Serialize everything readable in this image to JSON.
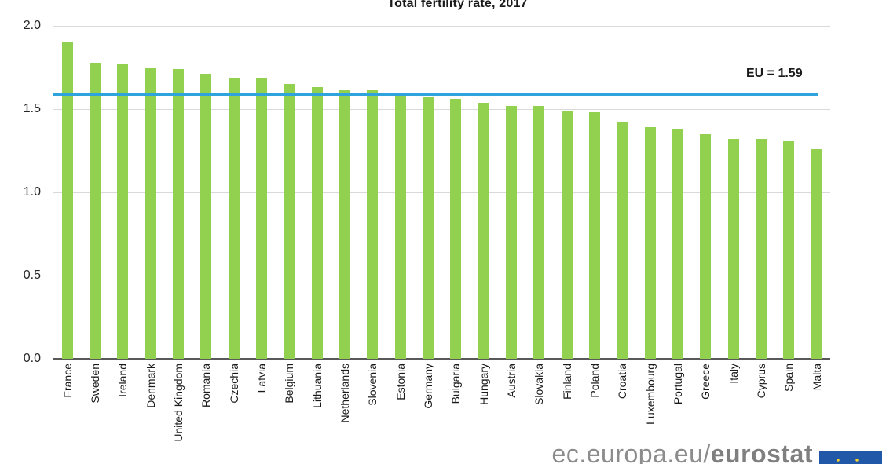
{
  "chart_data": {
    "type": "bar",
    "title": "Total fertility rate, 2017",
    "categories": [
      "France",
      "Sweden",
      "Ireland",
      "Denmark",
      "United Kingdom",
      "Romania",
      "Czechia",
      "Latvia",
      "Belgium",
      "Lithuania",
      "Netherlands",
      "Slovenia",
      "Estonia",
      "Germany",
      "Bulgaria",
      "Hungary",
      "Austria",
      "Slovakia",
      "Finland",
      "Poland",
      "Croatia",
      "Luxembourg",
      "Portugal",
      "Greece",
      "Italy",
      "Cyprus",
      "Spain",
      "Malta"
    ],
    "values": [
      1.9,
      1.78,
      1.77,
      1.75,
      1.74,
      1.71,
      1.69,
      1.69,
      1.65,
      1.63,
      1.62,
      1.62,
      1.59,
      1.57,
      1.56,
      1.54,
      1.52,
      1.52,
      1.49,
      1.48,
      1.42,
      1.39,
      1.38,
      1.35,
      1.32,
      1.32,
      1.31,
      1.26
    ],
    "xlabel": "",
    "ylabel": "",
    "ylim": [
      0,
      2.0
    ],
    "ytick_labels": [
      "2.0",
      "1.5",
      "1.0",
      "0.5",
      "0.0"
    ],
    "yticks": [
      2.0,
      1.5,
      1.0,
      0.5,
      0.0
    ],
    "grid": "horizontal",
    "legend": "none",
    "bar_color": "#92d050",
    "gridline_color": "#d9d9d9",
    "axis_color": "#595959",
    "reference_line": {
      "label": "EU = 1.59",
      "value": 1.59,
      "color": "#2fa3dc"
    }
  },
  "watermark": {
    "prefix": "ec.europa.eu/",
    "bold": "eurostat",
    "logo": "eu-flag-icon"
  }
}
